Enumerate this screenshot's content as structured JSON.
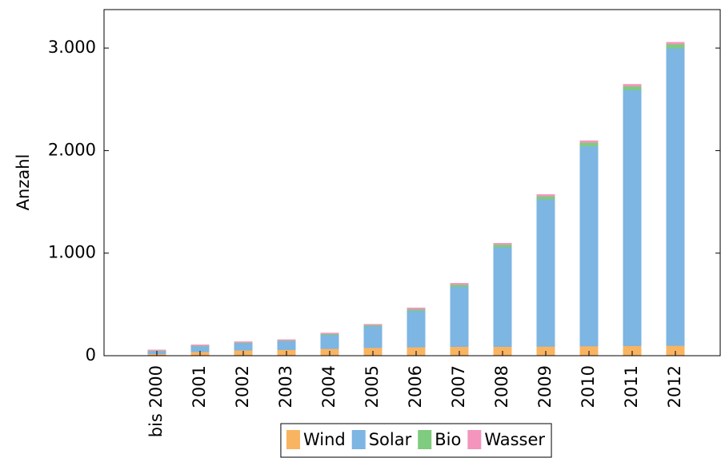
{
  "chart_data": {
    "type": "stacked-bar",
    "y_label": "Anzahl",
    "categories": [
      "bis 2000",
      "2001",
      "2002",
      "2003",
      "2004",
      "2005",
      "2006",
      "2007",
      "2008",
      "2009",
      "2010",
      "2011",
      "2012"
    ],
    "series": [
      {
        "name": "Wind",
        "color": "#f9b462",
        "values": [
          20,
          40,
          55,
          60,
          70,
          80,
          85,
          90,
          90,
          92,
          95,
          98,
          100
        ]
      },
      {
        "name": "Solar",
        "color": "#7db5e3",
        "values": [
          25,
          55,
          70,
          85,
          135,
          210,
          355,
          585,
          970,
          1435,
          1950,
          2495,
          2900
        ]
      },
      {
        "name": "Bio",
        "color": "#7fcb7f",
        "values": [
          5,
          5,
          5,
          5,
          10,
          10,
          15,
          20,
          25,
          30,
          35,
          37,
          40
        ]
      },
      {
        "name": "Wasser",
        "color": "#f495bd",
        "values": [
          5,
          5,
          5,
          5,
          5,
          5,
          10,
          10,
          10,
          13,
          15,
          15,
          15
        ]
      }
    ],
    "ylim": [
      0,
      3375
    ],
    "yticks": [
      0,
      {
        "value": 1000,
        "label": "1.000"
      },
      {
        "value": 2000,
        "label": "2.000"
      },
      {
        "value": 3000,
        "label": "3.000"
      }
    ]
  }
}
